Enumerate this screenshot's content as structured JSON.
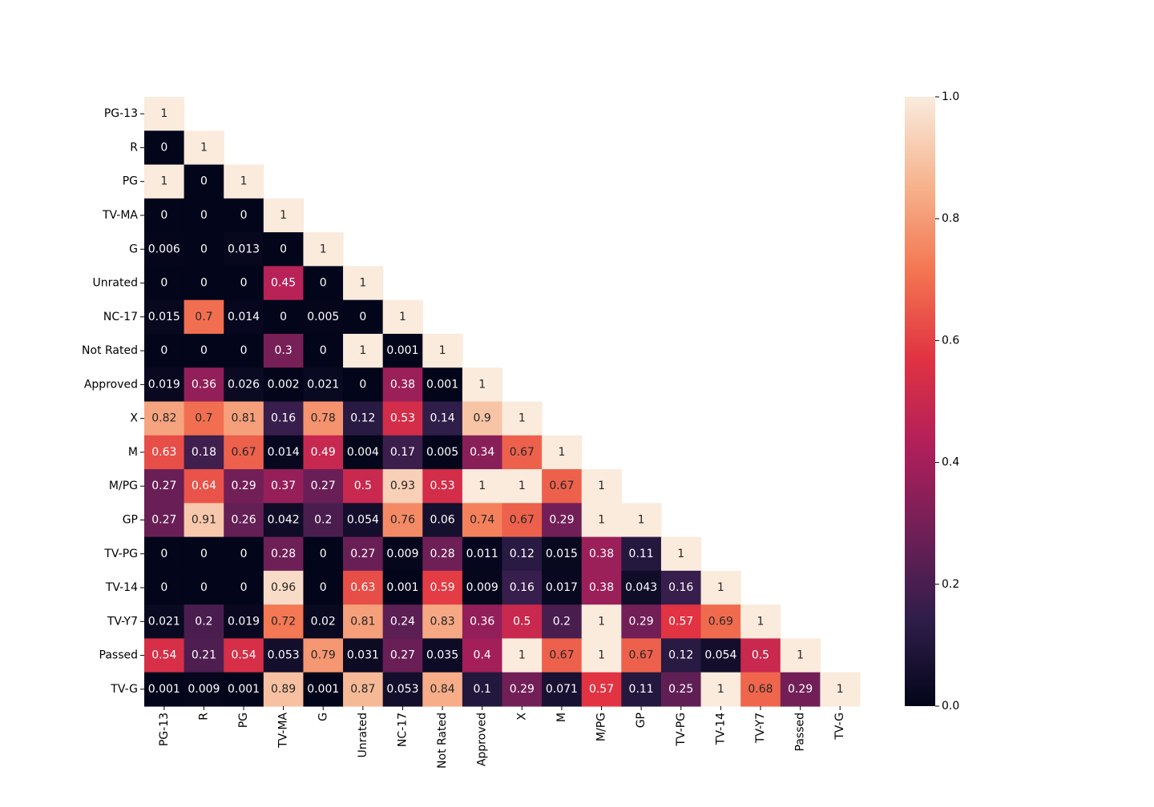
{
  "chart_data": {
    "type": "heatmap",
    "title": "",
    "xlabel": "",
    "ylabel": "",
    "mask": "lower-triangle",
    "colormap": "rocket",
    "colormap_stops": [
      "#03051a",
      "#2f1e4a",
      "#701f57",
      "#b11f5a",
      "#e13342",
      "#f37651",
      "#f6b48f",
      "#faebdd"
    ],
    "labels": [
      "PG-13",
      "R",
      "PG",
      "TV-MA",
      "G",
      "Unrated",
      "NC-17",
      "Not Rated",
      "Approved",
      "X",
      "M",
      "M/PG",
      "GP",
      "TV-PG",
      "TV-14",
      "TV-Y7",
      "Passed",
      "TV-G"
    ],
    "values": [
      [
        1
      ],
      [
        0,
        1
      ],
      [
        1,
        0,
        1
      ],
      [
        0,
        0,
        0,
        1
      ],
      [
        0.006,
        0,
        0.013,
        0,
        1
      ],
      [
        0,
        0,
        0,
        0.45,
        0,
        1
      ],
      [
        0.015,
        0.7,
        0.014,
        0,
        0.005,
        0,
        1
      ],
      [
        0,
        0,
        0,
        0.3,
        0,
        1,
        0.001,
        1
      ],
      [
        0.019,
        0.36,
        0.026,
        0.002,
        0.021,
        0,
        0.38,
        0.001,
        1
      ],
      [
        0.82,
        0.7,
        0.81,
        0.16,
        0.78,
        0.12,
        0.53,
        0.14,
        0.9,
        1
      ],
      [
        0.63,
        0.18,
        0.67,
        0.014,
        0.49,
        0.004,
        0.17,
        0.005,
        0.34,
        0.67,
        1
      ],
      [
        0.27,
        0.64,
        0.29,
        0.37,
        0.27,
        0.5,
        0.93,
        0.53,
        1,
        1,
        0.67,
        1
      ],
      [
        0.27,
        0.91,
        0.26,
        0.042,
        0.2,
        0.054,
        0.76,
        0.06,
        0.74,
        0.67,
        0.29,
        1,
        1
      ],
      [
        0,
        0,
        0,
        0.28,
        0,
        0.27,
        0.009,
        0.28,
        0.011,
        0.12,
        0.015,
        0.38,
        0.11,
        1
      ],
      [
        0,
        0,
        0,
        0.96,
        0,
        0.63,
        0.001,
        0.59,
        0.009,
        0.16,
        0.017,
        0.38,
        0.043,
        0.16,
        1
      ],
      [
        0.021,
        0.2,
        0.019,
        0.72,
        0.02,
        0.81,
        0.24,
        0.83,
        0.36,
        0.5,
        0.2,
        1,
        0.29,
        0.57,
        0.69,
        1
      ],
      [
        0.54,
        0.21,
        0.54,
        0.053,
        0.79,
        0.031,
        0.27,
        0.035,
        0.4,
        1,
        0.67,
        1,
        0.67,
        0.12,
        0.054,
        0.5,
        1
      ],
      [
        0.001,
        0.009,
        0.001,
        0.89,
        0.001,
        0.87,
        0.053,
        0.84,
        0.1,
        0.29,
        0.071,
        0.57,
        0.11,
        0.25,
        1,
        0.68,
        0.29,
        1
      ]
    ],
    "vmin": 0,
    "vmax": 1,
    "colorbar_ticks": [
      "0.0",
      "0.2",
      "0.4",
      "0.6",
      "0.8",
      "1.0"
    ]
  }
}
